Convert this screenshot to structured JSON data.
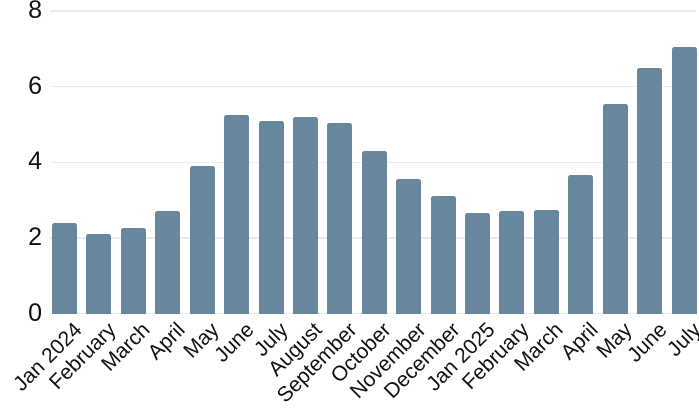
{
  "chart_data": {
    "type": "bar",
    "categories": [
      "Jan 2024",
      "February",
      "March",
      "April",
      "May",
      "June",
      "July",
      "August",
      "September",
      "October",
      "November",
      "December",
      "Jan 2025",
      "February",
      "March",
      "April",
      "May",
      "June",
      "July"
    ],
    "values": [
      2.4,
      2.1,
      2.25,
      2.7,
      3.9,
      5.25,
      5.1,
      5.2,
      5.05,
      4.3,
      3.55,
      3.1,
      2.65,
      2.7,
      2.75,
      3.65,
      5.55,
      6.5,
      7.05
    ],
    "title": "",
    "xlabel": "",
    "ylabel": "",
    "ylim": [
      0,
      8
    ],
    "yticks": [
      0,
      2,
      4,
      6,
      8
    ],
    "grid": true,
    "legend": false,
    "x_label_rotation_deg": 45,
    "colors": {
      "bar": "#67879D",
      "gridline": "#ECECEC",
      "tick_label": "#111111",
      "background": "#FFFFFF"
    }
  }
}
